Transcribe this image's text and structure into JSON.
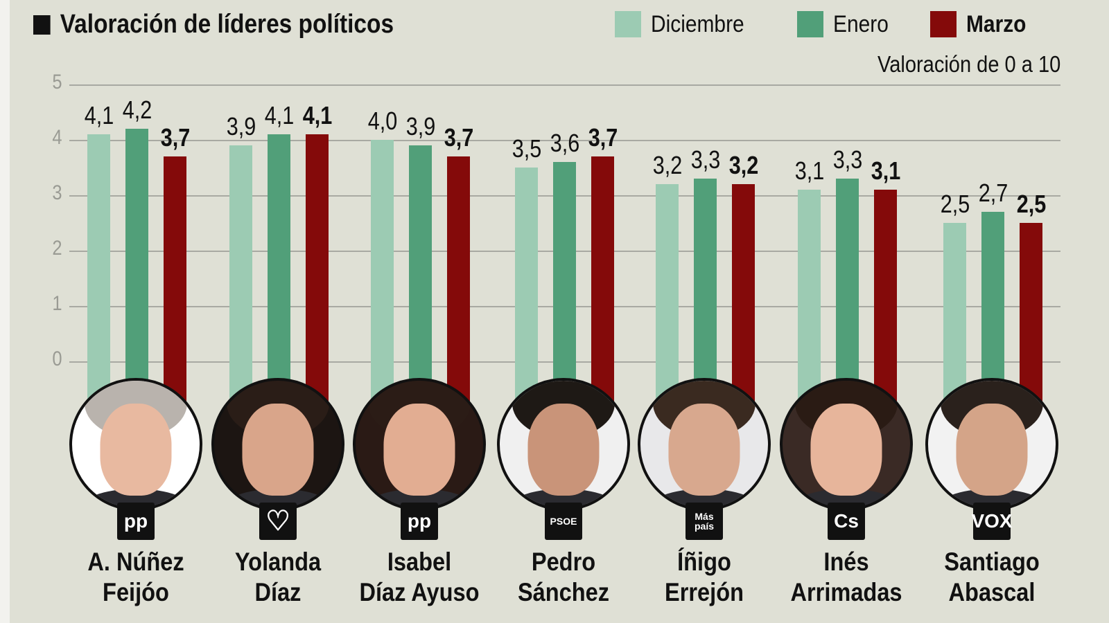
{
  "title": "Valoración de líderes políticos",
  "subtitle": "Valoración de 0 a 10",
  "chart_data": {
    "type": "bar",
    "title": "Valoración de líderes políticos",
    "subtitle": "Valoración de 0 a 10",
    "categories": [
      "A. Núñez Feijóo",
      "Yolanda Díaz",
      "Isabel Díaz Ayuso",
      "Pedro Sánchez",
      "Íñigo Errejón",
      "Inés Arrimadas",
      "Santiago Abascal"
    ],
    "category_lines": [
      [
        "A. Núñez",
        "Feijóo"
      ],
      [
        "Yolanda",
        "Díaz"
      ],
      [
        "Isabel",
        "Díaz Ayuso"
      ],
      [
        "Pedro",
        "Sánchez"
      ],
      [
        "Íñigo",
        "Errejón"
      ],
      [
        "Inés",
        "Arrimadas"
      ],
      [
        "Santiago",
        "Abascal"
      ]
    ],
    "series": [
      {
        "name": "Diciembre",
        "color": "#9ccbb3",
        "values": [
          4.1,
          3.9,
          4.0,
          3.5,
          3.2,
          3.1,
          2.5
        ],
        "labels": [
          "4,1",
          "3,9",
          "4,0",
          "3,5",
          "3,2",
          "3,1",
          "2,5"
        ]
      },
      {
        "name": "Enero",
        "color": "#519f79",
        "values": [
          4.2,
          4.1,
          3.9,
          3.6,
          3.3,
          3.3,
          2.7
        ],
        "labels": [
          "4,2",
          "4,1",
          "3,9",
          "3,6",
          "3,3",
          "3,3",
          "2,7"
        ]
      },
      {
        "name": "Marzo",
        "color": "#840a0a",
        "values": [
          3.7,
          4.1,
          3.7,
          3.7,
          3.2,
          3.1,
          2.5
        ],
        "labels": [
          "3,7",
          "4,1",
          "3,7",
          "3,7",
          "3,2",
          "3,1",
          "2,5"
        ]
      }
    ],
    "yticks": [
      "0",
      "1",
      "2",
      "3",
      "4",
      "5"
    ],
    "ylim": [
      0,
      5
    ],
    "grid": true,
    "legend_position": "top-right",
    "parties": [
      {
        "logo_text": "pp",
        "icon": "pp-logo-icon"
      },
      {
        "logo_text": "♡",
        "icon": "sumar-heart-logo-icon"
      },
      {
        "logo_text": "pp",
        "icon": "pp-logo-icon"
      },
      {
        "logo_text": "PSOE",
        "icon": "psoe-logo-icon"
      },
      {
        "logo_text": "Más país",
        "icon": "mas-pais-logo-icon"
      },
      {
        "logo_text": "Cs",
        "icon": "cs-logo-icon"
      },
      {
        "logo_text": "VOX",
        "icon": "vox-logo-icon"
      }
    ]
  }
}
